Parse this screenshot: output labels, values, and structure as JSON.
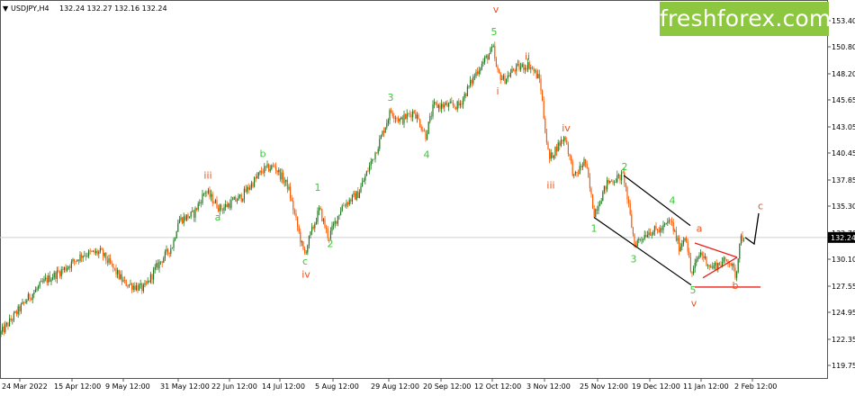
{
  "header": {
    "arrow": "▼",
    "symbol": "USDJPY,H4",
    "ohlc": "132.24 132.27 132.16 132.24"
  },
  "watermark": "freshforex.com",
  "colors": {
    "candle_up": "#1f7a1f",
    "candle_down": "#ff5a00",
    "wave_green": "#33cc33",
    "wave_red": "#e8541b",
    "channel": "#000000",
    "triangle": "#e8201b",
    "price_tag": "#000000",
    "logo": "#8dc63f"
  },
  "chart_data": {
    "type": "candlestick",
    "symbol": "USDJPY",
    "timeframe": "H4",
    "y_ticks": [
      "153.40",
      "150.80",
      "148.20",
      "145.65",
      "143.05",
      "140.45",
      "137.85",
      "135.30",
      "132.70",
      "130.10",
      "127.55",
      "124.95",
      "122.35",
      "119.75"
    ],
    "x_ticks": [
      "24 Mar 2022",
      "15 Apr 12:00",
      "9 May 12:00",
      "31 May 12:00",
      "22 Jun 12:00",
      "14 Jul 12:00",
      "5 Aug 12:00",
      "29 Aug 12:00",
      "20 Sep 12:00",
      "12 Oct 12:00",
      "3 Nov 12:00",
      "25 Nov 12:00",
      "19 Dec 12:00",
      "11 Jan 12:00",
      "2 Feb 12:00"
    ],
    "current_price": "132.24",
    "price_path": [
      [
        0,
        122.8
      ],
      [
        30,
        126.2
      ],
      [
        50,
        128.0
      ],
      [
        72,
        129.2
      ],
      [
        92,
        130.6
      ],
      [
        112,
        130.8
      ],
      [
        138,
        127.8
      ],
      [
        160,
        127.2
      ],
      [
        175,
        129.5
      ],
      [
        192,
        131.5
      ],
      [
        198,
        133.9
      ],
      [
        215,
        134.5
      ],
      [
        228,
        136.8
      ],
      [
        245,
        135.0
      ],
      [
        268,
        136.2
      ],
      [
        292,
        138.8
      ],
      [
        305,
        139.2
      ],
      [
        320,
        137.2
      ],
      [
        330,
        133.5
      ],
      [
        338,
        130.5
      ],
      [
        345,
        132.5
      ],
      [
        355,
        135.0
      ],
      [
        365,
        132.2
      ],
      [
        380,
        135.3
      ],
      [
        398,
        136.5
      ],
      [
        420,
        141.2
      ],
      [
        434,
        144.6
      ],
      [
        445,
        143.6
      ],
      [
        460,
        144.6
      ],
      [
        473,
        142.2
      ],
      [
        482,
        145.1
      ],
      [
        510,
        145.1
      ],
      [
        530,
        148.5
      ],
      [
        548,
        150.7
      ],
      [
        552,
        148.4
      ],
      [
        560,
        147.6
      ],
      [
        572,
        148.7
      ],
      [
        588,
        149.1
      ],
      [
        600,
        147.6
      ],
      [
        605,
        143.4
      ],
      [
        610,
        139.8
      ],
      [
        618,
        141.0
      ],
      [
        628,
        142.1
      ],
      [
        638,
        138.0
      ],
      [
        650,
        139.8
      ],
      [
        660,
        134.6
      ],
      [
        675,
        137.6
      ],
      [
        693,
        138.3
      ],
      [
        705,
        131.6
      ],
      [
        720,
        132.8
      ],
      [
        735,
        133.0
      ],
      [
        745,
        133.9
      ],
      [
        755,
        131.2
      ],
      [
        762,
        132.6
      ],
      [
        768,
        128.5
      ],
      [
        778,
        130.8
      ],
      [
        790,
        129.3
      ],
      [
        810,
        130.1
      ],
      [
        818,
        128.4
      ],
      [
        822,
        132.2
      ],
      [
        828,
        132.24
      ]
    ],
    "wave_labels": [
      {
        "text": "iii",
        "color": "red",
        "x": 231,
        "price": 138.0
      },
      {
        "text": "a",
        "color": "green",
        "x": 242,
        "price": 133.9
      },
      {
        "text": "b",
        "color": "green",
        "x": 292,
        "price": 140.1
      },
      {
        "text": "1",
        "color": "green",
        "x": 353,
        "price": 136.8
      },
      {
        "text": "c",
        "color": "green",
        "x": 339,
        "price": 129.6
      },
      {
        "text": "iv",
        "color": "red",
        "x": 340,
        "price": 128.3
      },
      {
        "text": "2",
        "color": "green",
        "x": 367,
        "price": 131.3
      },
      {
        "text": "3",
        "color": "green",
        "x": 434,
        "price": 145.6
      },
      {
        "text": "4",
        "color": "green",
        "x": 474,
        "price": 140.0
      },
      {
        "text": "v",
        "color": "red",
        "x": 551,
        "price": 154.2
      },
      {
        "text": "5",
        "color": "green",
        "x": 549,
        "price": 152.0
      },
      {
        "text": "i",
        "color": "red",
        "x": 553,
        "price": 146.2
      },
      {
        "text": "ii",
        "color": "red",
        "x": 586,
        "price": 149.6
      },
      {
        "text": "iv",
        "color": "red",
        "x": 629,
        "price": 142.6
      },
      {
        "text": "iii",
        "color": "red",
        "x": 612,
        "price": 137.0
      },
      {
        "text": "2",
        "color": "green",
        "x": 694,
        "price": 138.8
      },
      {
        "text": "4",
        "color": "green",
        "x": 747,
        "price": 135.5
      },
      {
        "text": "1",
        "color": "green",
        "x": 660,
        "price": 132.8
      },
      {
        "text": "3",
        "color": "green",
        "x": 704,
        "price": 129.8
      },
      {
        "text": "a",
        "color": "red",
        "x": 777,
        "price": 132.8
      },
      {
        "text": "5",
        "color": "green",
        "x": 770,
        "price": 126.8
      },
      {
        "text": "v",
        "color": "red",
        "x": 771,
        "price": 125.5
      },
      {
        "text": "b",
        "color": "red",
        "x": 817,
        "price": 127.2
      },
      {
        "text": "c",
        "color": "red",
        "x": 845,
        "price": 135.0
      }
    ]
  }
}
